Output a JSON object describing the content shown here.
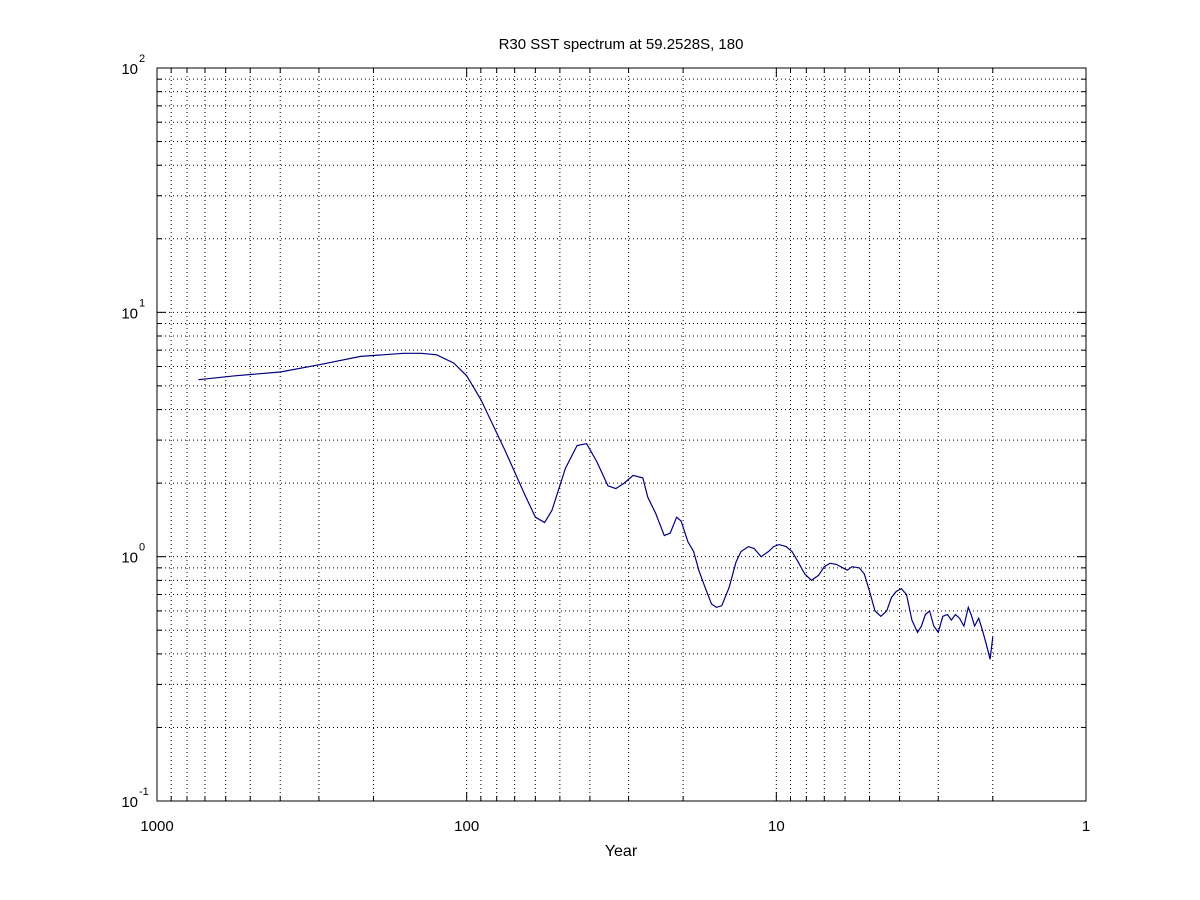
{
  "chart_data": {
    "type": "line",
    "title": "R30 SST spectrum at 59.2528S, 180",
    "xlabel": "Year",
    "ylabel": "",
    "x_scale": "log",
    "y_scale": "log",
    "x_reversed": true,
    "xlim": [
      1000,
      1
    ],
    "ylim": [
      0.1,
      100
    ],
    "grid": true,
    "x_ticks": [
      {
        "value": 1000,
        "label": "1000"
      },
      {
        "value": 100,
        "label": "100"
      },
      {
        "value": 10,
        "label": "10"
      },
      {
        "value": 1,
        "label": "1"
      }
    ],
    "y_ticks": [
      {
        "value": 0.1,
        "base": "10",
        "exponent": "-1"
      },
      {
        "value": 1,
        "base": "10",
        "exponent": "0"
      },
      {
        "value": 10,
        "base": "10",
        "exponent": "1"
      },
      {
        "value": 100,
        "base": "10",
        "exponent": "2"
      }
    ],
    "series": [
      {
        "color": "#000080",
        "x": [
          735,
          560,
          400,
          300,
          220,
          160,
          140,
          125,
          110,
          100,
          90,
          75,
          65,
          60,
          56,
          53,
          48,
          44,
          41,
          38,
          35,
          33,
          31,
          29,
          27,
          26,
          24.5,
          23,
          22,
          21,
          20.3,
          19.3,
          18.5,
          17.8,
          17,
          16.2,
          15.6,
          15,
          14.2,
          13.5,
          13,
          12.3,
          11.8,
          11.2,
          10.6,
          10.2,
          9.8,
          9.3,
          8.9,
          8.5,
          8.1,
          7.7,
          7.3,
          7,
          6.7,
          6.4,
          6.1,
          5.9,
          5.7,
          5.4,
          5.2,
          5,
          4.8,
          4.6,
          4.4,
          4.25,
          4.1,
          3.95,
          3.8,
          3.65,
          3.5,
          3.4,
          3.3,
          3.2,
          3.1,
          3.0,
          2.9,
          2.8,
          2.72,
          2.64,
          2.56,
          2.48,
          2.4,
          2.35,
          2.29,
          2.22,
          2.16,
          2.1,
          2.04,
          2.0
        ],
        "y": [
          5.3,
          5.5,
          5.7,
          6.1,
          6.6,
          6.8,
          6.8,
          6.7,
          6.2,
          5.5,
          4.4,
          2.7,
          1.8,
          1.45,
          1.38,
          1.55,
          2.3,
          2.85,
          2.9,
          2.45,
          1.95,
          1.9,
          2.0,
          2.15,
          2.1,
          1.75,
          1.5,
          1.22,
          1.25,
          1.45,
          1.4,
          1.15,
          1.05,
          0.88,
          0.75,
          0.64,
          0.62,
          0.63,
          0.75,
          0.95,
          1.05,
          1.1,
          1.08,
          1.0,
          1.05,
          1.1,
          1.12,
          1.1,
          1.05,
          0.95,
          0.85,
          0.8,
          0.84,
          0.91,
          0.94,
          0.93,
          0.9,
          0.88,
          0.91,
          0.9,
          0.85,
          0.72,
          0.6,
          0.57,
          0.6,
          0.68,
          0.72,
          0.74,
          0.7,
          0.55,
          0.49,
          0.52,
          0.58,
          0.6,
          0.52,
          0.49,
          0.57,
          0.58,
          0.55,
          0.58,
          0.56,
          0.52,
          0.62,
          0.58,
          0.52,
          0.56,
          0.5,
          0.44,
          0.38,
          0.47
        ]
      }
    ]
  }
}
